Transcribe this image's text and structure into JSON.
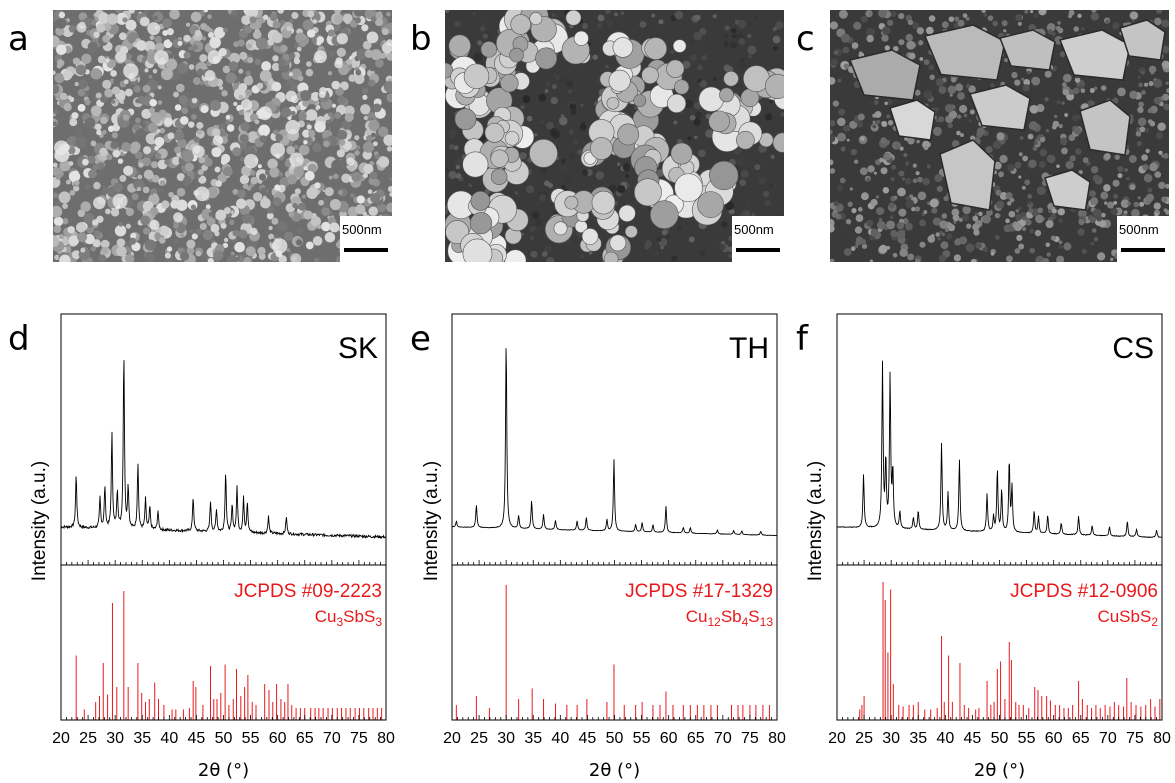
{
  "panels": {
    "a": "a",
    "b": "b",
    "c": "c",
    "d": "d",
    "e": "e",
    "f": "f"
  },
  "sem": [
    {
      "scale": "500nm",
      "morph": "fine"
    },
    {
      "scale": "500nm",
      "morph": "agglomerate"
    },
    {
      "scale": "500nm",
      "morph": "plates"
    }
  ],
  "colors": {
    "pattern": "#000000",
    "reference": "#e8191c"
  },
  "chart_data": [
    {
      "type": "line",
      "title": "SK",
      "xlabel": "2θ (°)",
      "ylabel": "Intensity (a.u.)",
      "xlim": [
        20,
        80
      ],
      "xticks": [
        20,
        25,
        30,
        35,
        40,
        45,
        50,
        55,
        60,
        65,
        70,
        75,
        80
      ],
      "background": 0.14,
      "noise": 0.35,
      "peaks": [
        [
          22.8,
          0.28
        ],
        [
          27.2,
          0.16
        ],
        [
          28.1,
          0.22
        ],
        [
          29.4,
          0.5
        ],
        [
          30.4,
          0.2
        ],
        [
          31.6,
          0.93
        ],
        [
          32.4,
          0.22
        ],
        [
          34.2,
          0.35
        ],
        [
          35.6,
          0.16
        ],
        [
          36.4,
          0.12
        ],
        [
          37.9,
          0.1
        ],
        [
          44.4,
          0.18
        ],
        [
          47.6,
          0.16
        ],
        [
          48.7,
          0.12
        ],
        [
          50.4,
          0.32
        ],
        [
          51.6,
          0.14
        ],
        [
          52.5,
          0.24
        ],
        [
          53.7,
          0.18
        ],
        [
          54.4,
          0.16
        ],
        [
          58.3,
          0.09
        ],
        [
          61.6,
          0.09
        ]
      ],
      "reference": {
        "label": "JCPDS #09-2223",
        "formula": [
          "Cu",
          "3",
          "SbS",
          "3"
        ],
        "lines": [
          [
            22.8,
            0.43
          ],
          [
            24.3,
            0.07
          ],
          [
            26.4,
            0.12
          ],
          [
            27.1,
            0.16
          ],
          [
            27.8,
            0.38
          ],
          [
            28.6,
            0.17
          ],
          [
            29.5,
            0.78
          ],
          [
            30.3,
            0.22
          ],
          [
            31.6,
            0.86
          ],
          [
            32.4,
            0.22
          ],
          [
            34.2,
            0.38
          ],
          [
            34.9,
            0.18
          ],
          [
            35.6,
            0.12
          ],
          [
            36.3,
            0.14
          ],
          [
            37.3,
            0.25
          ],
          [
            38.0,
            0.14
          ],
          [
            39.0,
            0.1
          ],
          [
            40.5,
            0.07
          ],
          [
            41.2,
            0.07
          ],
          [
            42.6,
            0.07
          ],
          [
            43.7,
            0.08
          ],
          [
            44.4,
            0.26
          ],
          [
            44.9,
            0.22
          ],
          [
            46.2,
            0.1
          ],
          [
            47.6,
            0.36
          ],
          [
            48.2,
            0.14
          ],
          [
            48.8,
            0.14
          ],
          [
            49.5,
            0.18
          ],
          [
            50.3,
            0.37
          ],
          [
            51.0,
            0.1
          ],
          [
            51.8,
            0.14
          ],
          [
            52.4,
            0.34
          ],
          [
            53.2,
            0.16
          ],
          [
            53.9,
            0.22
          ],
          [
            54.5,
            0.3
          ],
          [
            55.3,
            0.12
          ],
          [
            56.0,
            0.1
          ],
          [
            57.6,
            0.24
          ],
          [
            58.4,
            0.2
          ],
          [
            59.1,
            0.12
          ],
          [
            59.8,
            0.24
          ],
          [
            60.6,
            0.14
          ],
          [
            61.3,
            0.12
          ],
          [
            61.9,
            0.24
          ],
          [
            62.6,
            0.1
          ],
          [
            63.4,
            0.08
          ],
          [
            64.2,
            0.08
          ],
          [
            65.0,
            0.08
          ],
          [
            66.1,
            0.08
          ],
          [
            66.9,
            0.08
          ],
          [
            67.6,
            0.08
          ],
          [
            68.4,
            0.08
          ],
          [
            69.3,
            0.08
          ],
          [
            70.1,
            0.08
          ],
          [
            71.0,
            0.08
          ],
          [
            71.8,
            0.08
          ],
          [
            72.6,
            0.08
          ],
          [
            73.4,
            0.08
          ],
          [
            74.3,
            0.08
          ],
          [
            75.1,
            0.08
          ],
          [
            75.9,
            0.08
          ],
          [
            76.8,
            0.08
          ],
          [
            77.6,
            0.08
          ],
          [
            78.4,
            0.08
          ],
          [
            79.2,
            0.08
          ]
        ]
      }
    },
    {
      "type": "line",
      "title": "TH",
      "xlabel": "2θ (°)",
      "ylabel": "Intensity (a.u.)",
      "xlim": [
        20,
        80
      ],
      "xticks": [
        20,
        25,
        30,
        35,
        40,
        45,
        50,
        55,
        60,
        65,
        70,
        75,
        80
      ],
      "background": 0.12,
      "noise": 0.06,
      "peaks": [
        [
          20.8,
          0.03
        ],
        [
          24.5,
          0.12
        ],
        [
          30.0,
          1.0
        ],
        [
          32.3,
          0.07
        ],
        [
          34.7,
          0.15
        ],
        [
          36.9,
          0.08
        ],
        [
          39.1,
          0.05
        ],
        [
          43.1,
          0.05
        ],
        [
          44.8,
          0.07
        ],
        [
          48.6,
          0.06
        ],
        [
          49.9,
          0.38
        ],
        [
          53.9,
          0.04
        ],
        [
          55.1,
          0.05
        ],
        [
          57.1,
          0.04
        ],
        [
          59.5,
          0.14
        ],
        [
          62.7,
          0.03
        ],
        [
          64.0,
          0.03
        ],
        [
          69.0,
          0.02
        ],
        [
          72.0,
          0.02
        ],
        [
          73.5,
          0.02
        ],
        [
          77.0,
          0.02
        ]
      ],
      "reference": {
        "label": "JCPDS #17-1329",
        "formula": [
          "Cu",
          "12",
          "Sb",
          "4",
          "S",
          "13"
        ],
        "lines": [
          [
            20.8,
            0.1
          ],
          [
            24.5,
            0.16
          ],
          [
            26.9,
            0.08
          ],
          [
            30.0,
            0.9
          ],
          [
            32.3,
            0.14
          ],
          [
            34.8,
            0.21
          ],
          [
            36.9,
            0.14
          ],
          [
            39.1,
            0.11
          ],
          [
            41.2,
            0.1
          ],
          [
            43.1,
            0.1
          ],
          [
            44.9,
            0.14
          ],
          [
            48.6,
            0.12
          ],
          [
            49.9,
            0.37
          ],
          [
            51.8,
            0.1
          ],
          [
            53.9,
            0.1
          ],
          [
            55.1,
            0.12
          ],
          [
            57.1,
            0.1
          ],
          [
            58.4,
            0.1
          ],
          [
            59.5,
            0.19
          ],
          [
            60.8,
            0.1
          ],
          [
            62.7,
            0.1
          ],
          [
            64.0,
            0.1
          ],
          [
            65.3,
            0.1
          ],
          [
            66.5,
            0.1
          ],
          [
            67.8,
            0.1
          ],
          [
            69.0,
            0.1
          ],
          [
            71.6,
            0.1
          ],
          [
            72.8,
            0.1
          ],
          [
            73.7,
            0.1
          ],
          [
            75.0,
            0.1
          ],
          [
            76.1,
            0.1
          ],
          [
            77.4,
            0.1
          ],
          [
            78.6,
            0.1
          ]
        ]
      }
    },
    {
      "type": "line",
      "title": "CS",
      "xlabel": "2θ (°)",
      "ylabel": "Intensity (a.u.)",
      "xlim": [
        20,
        80
      ],
      "xticks": [
        20,
        25,
        30,
        35,
        40,
        45,
        50,
        55,
        60,
        65,
        70,
        75,
        80
      ],
      "background": 0.15,
      "noise": 0.1,
      "peaks": [
        [
          24.9,
          0.28
        ],
        [
          28.4,
          0.86
        ],
        [
          29.0,
          0.35
        ],
        [
          29.8,
          0.8
        ],
        [
          30.3,
          0.3
        ],
        [
          31.6,
          0.09
        ],
        [
          34.1,
          0.06
        ],
        [
          35.0,
          0.1
        ],
        [
          39.3,
          0.46
        ],
        [
          40.5,
          0.2
        ],
        [
          42.6,
          0.38
        ],
        [
          47.7,
          0.2
        ],
        [
          48.9,
          0.08
        ],
        [
          49.6,
          0.33
        ],
        [
          50.4,
          0.22
        ],
        [
          51.8,
          0.38
        ],
        [
          52.3,
          0.24
        ],
        [
          56.4,
          0.12
        ],
        [
          57.2,
          0.09
        ],
        [
          58.9,
          0.1
        ],
        [
          61.4,
          0.06
        ],
        [
          64.6,
          0.1
        ],
        [
          67.1,
          0.05
        ],
        [
          70.3,
          0.05
        ],
        [
          73.6,
          0.08
        ],
        [
          75.3,
          0.04
        ],
        [
          79.0,
          0.04
        ]
      ],
      "reference": {
        "label": "JCPDS #12-0906",
        "formula": [
          "CuSbS",
          "2"
        ],
        "lines": [
          [
            24.2,
            0.07
          ],
          [
            24.6,
            0.1
          ],
          [
            25.0,
            0.16
          ],
          [
            28.5,
            0.92
          ],
          [
            28.9,
            0.8
          ],
          [
            29.4,
            0.45
          ],
          [
            29.9,
            0.87
          ],
          [
            30.4,
            0.24
          ],
          [
            31.4,
            0.1
          ],
          [
            32.2,
            0.09
          ],
          [
            33.3,
            0.1
          ],
          [
            34.1,
            0.1
          ],
          [
            35.0,
            0.12
          ],
          [
            36.2,
            0.07
          ],
          [
            37.3,
            0.07
          ],
          [
            38.5,
            0.08
          ],
          [
            39.3,
            0.56
          ],
          [
            39.8,
            0.12
          ],
          [
            40.6,
            0.43
          ],
          [
            41.3,
            0.12
          ],
          [
            42.7,
            0.38
          ],
          [
            43.5,
            0.1
          ],
          [
            44.3,
            0.08
          ],
          [
            45.6,
            0.07
          ],
          [
            46.2,
            0.08
          ],
          [
            47.7,
            0.26
          ],
          [
            48.4,
            0.1
          ],
          [
            49.0,
            0.12
          ],
          [
            49.6,
            0.34
          ],
          [
            50.2,
            0.39
          ],
          [
            51.0,
            0.14
          ],
          [
            51.8,
            0.52
          ],
          [
            52.2,
            0.4
          ],
          [
            53.0,
            0.12
          ],
          [
            53.6,
            0.1
          ],
          [
            54.4,
            0.1
          ],
          [
            55.4,
            0.08
          ],
          [
            56.5,
            0.22
          ],
          [
            57.1,
            0.2
          ],
          [
            57.8,
            0.16
          ],
          [
            58.7,
            0.16
          ],
          [
            59.4,
            0.13
          ],
          [
            60.3,
            0.1
          ],
          [
            61.1,
            0.1
          ],
          [
            61.9,
            0.08
          ],
          [
            62.7,
            0.08
          ],
          [
            63.5,
            0.1
          ],
          [
            64.6,
            0.26
          ],
          [
            65.3,
            0.14
          ],
          [
            66.2,
            0.1
          ],
          [
            67.0,
            0.08
          ],
          [
            67.8,
            0.1
          ],
          [
            68.6,
            0.08
          ],
          [
            69.5,
            0.1
          ],
          [
            70.4,
            0.09
          ],
          [
            71.2,
            0.12
          ],
          [
            72.0,
            0.1
          ],
          [
            72.9,
            0.09
          ],
          [
            73.5,
            0.28
          ],
          [
            74.3,
            0.12
          ],
          [
            75.2,
            0.1
          ],
          [
            76.1,
            0.09
          ],
          [
            77.0,
            0.1
          ],
          [
            77.9,
            0.14
          ],
          [
            78.7,
            0.09
          ],
          [
            79.6,
            0.14
          ]
        ]
      }
    }
  ]
}
